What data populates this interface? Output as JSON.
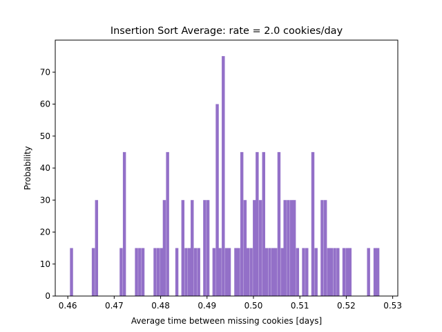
{
  "chart_data": {
    "type": "bar",
    "title": "Insertion Sort Average: rate = 2.0 cookies/day",
    "xlabel": "Average time between missing cookies [days]",
    "ylabel": "Probability",
    "xlim": [
      0.4573,
      0.5311
    ],
    "ylim": [
      0,
      80
    ],
    "xticks": [
      0.46,
      0.47,
      0.48,
      0.49,
      0.5,
      0.51,
      0.52,
      0.53
    ],
    "xtick_labels": [
      "0.46",
      "0.47",
      "0.48",
      "0.49",
      "0.50",
      "0.51",
      "0.52",
      "0.53"
    ],
    "yticks": [
      0,
      10,
      20,
      30,
      40,
      50,
      60,
      70
    ],
    "ytick_labels": [
      "0",
      "10",
      "20",
      "30",
      "40",
      "50",
      "60",
      "70"
    ],
    "bar_color": "#9370c8",
    "bin_width": 0.00066,
    "bins": [
      [
        0.4608,
        15
      ],
      [
        0.4655,
        15
      ],
      [
        0.4662,
        30
      ],
      [
        0.4715,
        15
      ],
      [
        0.4722,
        45
      ],
      [
        0.4748,
        15
      ],
      [
        0.4755,
        15
      ],
      [
        0.4762,
        15
      ],
      [
        0.4788,
        15
      ],
      [
        0.4795,
        15
      ],
      [
        0.4802,
        15
      ],
      [
        0.4808,
        30
      ],
      [
        0.4815,
        45
      ],
      [
        0.4835,
        15
      ],
      [
        0.4848,
        30
      ],
      [
        0.4855,
        15
      ],
      [
        0.4862,
        15
      ],
      [
        0.4868,
        30
      ],
      [
        0.4875,
        15
      ],
      [
        0.4882,
        15
      ],
      [
        0.4895,
        30
      ],
      [
        0.4902,
        30
      ],
      [
        0.4915,
        15
      ],
      [
        0.4922,
        60
      ],
      [
        0.4928,
        15
      ],
      [
        0.4935,
        75
      ],
      [
        0.4942,
        15
      ],
      [
        0.4948,
        15
      ],
      [
        0.4962,
        15
      ],
      [
        0.4968,
        15
      ],
      [
        0.4975,
        45
      ],
      [
        0.4982,
        30
      ],
      [
        0.4988,
        15
      ],
      [
        0.4995,
        15
      ],
      [
        0.5002,
        30
      ],
      [
        0.5008,
        45
      ],
      [
        0.5015,
        30
      ],
      [
        0.5022,
        45
      ],
      [
        0.5028,
        15
      ],
      [
        0.5035,
        15
      ],
      [
        0.5042,
        15
      ],
      [
        0.5048,
        15
      ],
      [
        0.5055,
        45
      ],
      [
        0.5062,
        15
      ],
      [
        0.5068,
        30
      ],
      [
        0.5075,
        30
      ],
      [
        0.5082,
        30
      ],
      [
        0.5088,
        30
      ],
      [
        0.5095,
        15
      ],
      [
        0.5108,
        15
      ],
      [
        0.5115,
        15
      ],
      [
        0.5128,
        45
      ],
      [
        0.5135,
        15
      ],
      [
        0.5148,
        30
      ],
      [
        0.5155,
        30
      ],
      [
        0.5162,
        15
      ],
      [
        0.5168,
        15
      ],
      [
        0.5175,
        15
      ],
      [
        0.5182,
        15
      ],
      [
        0.5195,
        15
      ],
      [
        0.5202,
        15
      ],
      [
        0.5208,
        15
      ],
      [
        0.5248,
        15
      ],
      [
        0.5262,
        15
      ],
      [
        0.5268,
        15
      ]
    ]
  }
}
